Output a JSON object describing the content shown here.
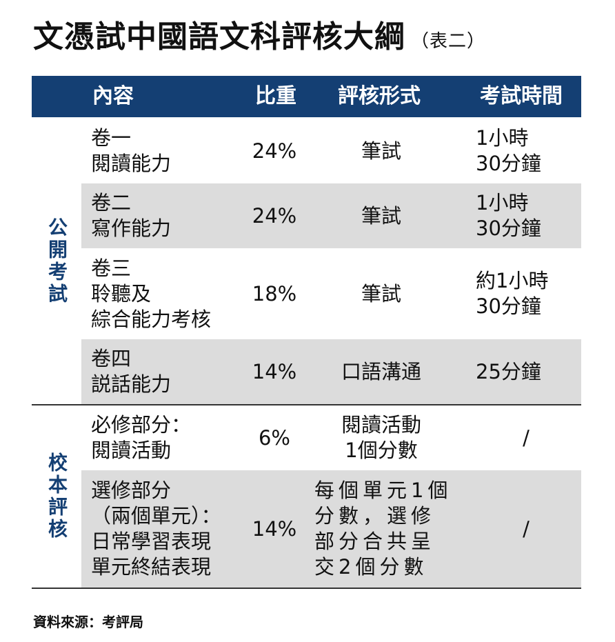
{
  "title": "文憑試中國語文科評核大綱",
  "title_note": "（表二）",
  "headers": {
    "content": "內容",
    "weight": "比重",
    "form": "評核形式",
    "time": "考試時間"
  },
  "groups": {
    "public": "公開考試",
    "school": "校本評核"
  },
  "rows": [
    {
      "content": "卷一\n閱讀能力",
      "weight": "24%",
      "form": "筆試",
      "time": "1小時\n30分鐘"
    },
    {
      "content": "卷二\n寫作能力",
      "weight": "24%",
      "form": "筆試",
      "time": "1小時\n30分鐘"
    },
    {
      "content": "卷三\n聆聽及\n綜合能力考核",
      "weight": "18%",
      "form": "筆試",
      "time": "約1小時\n30分鐘"
    },
    {
      "content": "卷四\n説話能力",
      "weight": "14%",
      "form": "口語溝通",
      "time": "25分鐘"
    },
    {
      "content": "必修部分：\n閱讀活動",
      "weight": "6%",
      "form": "閱讀活動\n1個分數",
      "time": "/"
    },
    {
      "content": "選修部分\n（兩個單元）：\n日常學習表現\n單元終結表現",
      "weight": "14%",
      "form": "每個單元1個\n分數，選修\n部分合共呈\n交2個分數",
      "time": "/"
    }
  ],
  "source": "資料來源：考評局",
  "colors": {
    "header_bg": "#143f73",
    "group_text": "#143f73",
    "row_shade": "#dcdcdc"
  }
}
